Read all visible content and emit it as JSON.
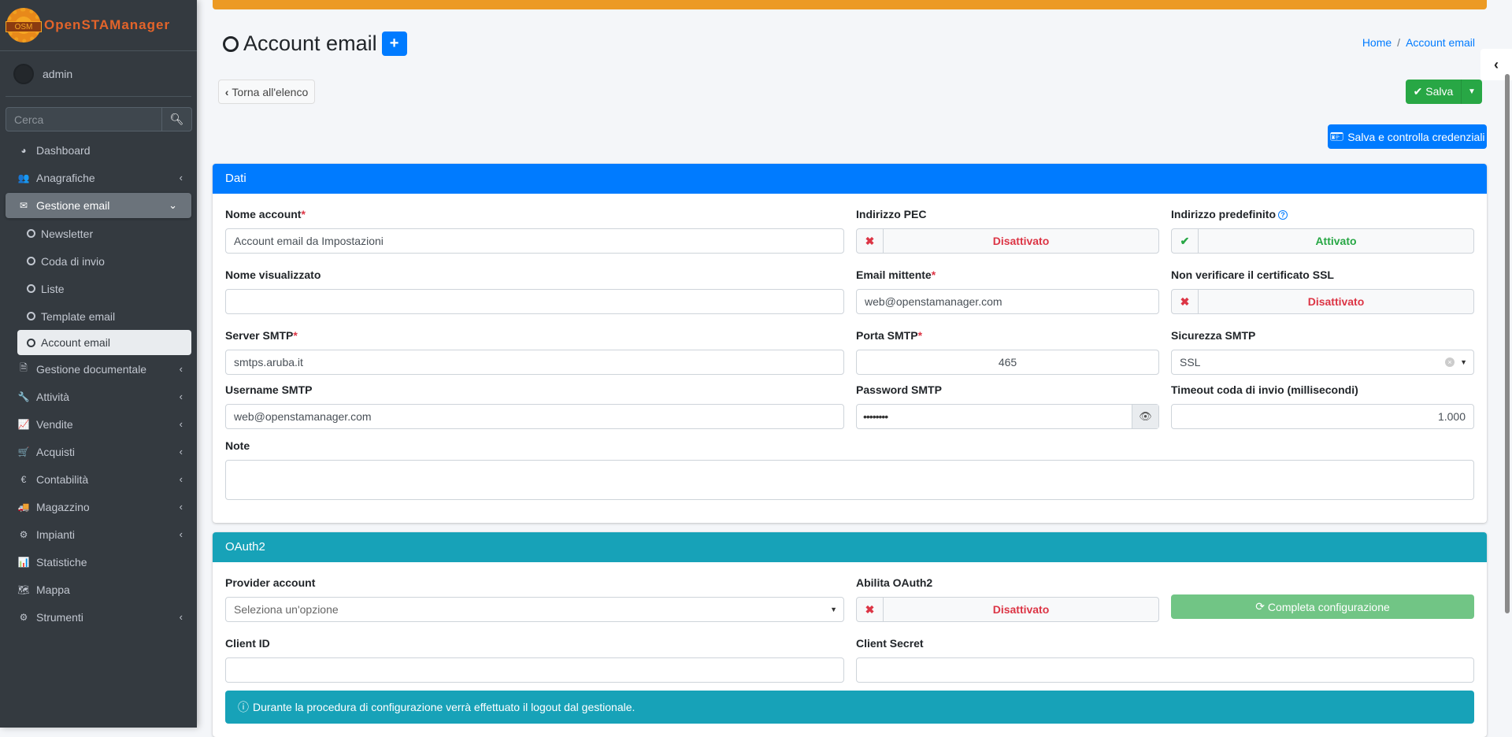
{
  "brand": {
    "logo_text": "OSM",
    "name": "OpenSTAManager"
  },
  "user": {
    "name": "admin"
  },
  "search": {
    "placeholder": "Cerca"
  },
  "sidebar": {
    "items": [
      {
        "label": "Dashboard",
        "icon": "dashboard-icon",
        "glyph": "◕"
      },
      {
        "label": "Anagrafiche",
        "icon": "users-icon",
        "glyph": "👥",
        "arrow": "‹"
      },
      {
        "label": "Gestione email",
        "icon": "envelope-icon",
        "glyph": "✉",
        "arrow": "⌄",
        "active": true
      },
      {
        "label": "Newsletter",
        "sub": true
      },
      {
        "label": "Coda di invio",
        "sub": true
      },
      {
        "label": "Liste",
        "sub": true
      },
      {
        "label": "Template email",
        "sub": true
      },
      {
        "label": "Account email",
        "sub": true,
        "current": true
      },
      {
        "label": "Gestione documentale",
        "icon": "file-icon",
        "glyph": "🗎",
        "arrow": "‹"
      },
      {
        "label": "Attività",
        "icon": "wrench-icon",
        "glyph": "🔧",
        "arrow": "‹"
      },
      {
        "label": "Vendite",
        "icon": "chart-line-icon",
        "glyph": "📈",
        "arrow": "‹"
      },
      {
        "label": "Acquisti",
        "icon": "cart-icon",
        "glyph": "🛒",
        "arrow": "‹"
      },
      {
        "label": "Contabilità",
        "icon": "euro-icon",
        "glyph": "€",
        "arrow": "‹"
      },
      {
        "label": "Magazzino",
        "icon": "truck-icon",
        "glyph": "🚚",
        "arrow": "‹"
      },
      {
        "label": "Impianti",
        "icon": "sitemap-icon",
        "glyph": "⚙",
        "arrow": "‹"
      },
      {
        "label": "Statistiche",
        "icon": "bar-chart-icon",
        "glyph": "📊"
      },
      {
        "label": "Mappa",
        "icon": "map-icon",
        "glyph": "🗺"
      },
      {
        "label": "Strumenti",
        "icon": "cog-icon",
        "glyph": "⚙",
        "arrow": "‹"
      }
    ]
  },
  "header": {
    "title": "Account email",
    "add": "+",
    "breadcrumb": [
      "Home",
      "/",
      "Account email"
    ]
  },
  "toolbar": {
    "back": "Torna all'elenco",
    "save": "Salva",
    "save_check": "Salva e controlla credenziali"
  },
  "dati": {
    "title": "Dati",
    "nome_account": {
      "label": "Nome account",
      "value": "Account email da Impostazioni"
    },
    "pec": {
      "label": "Indirizzo PEC",
      "value": "Disattivato"
    },
    "predefinito": {
      "label": "Indirizzo predefinito",
      "value": "Attivato"
    },
    "nome_visualizzato": {
      "label": "Nome visualizzato",
      "value": ""
    },
    "mittente": {
      "label": "Email mittente",
      "value": "web@openstamanager.com"
    },
    "ssl_check": {
      "label": "Non verificare il certificato SSL",
      "value": "Disattivato"
    },
    "server": {
      "label": "Server SMTP",
      "value": "smtps.aruba.it"
    },
    "porta": {
      "label": "Porta SMTP",
      "value": "465"
    },
    "sicurezza": {
      "label": "Sicurezza SMTP",
      "value": "SSL"
    },
    "username": {
      "label": "Username SMTP",
      "value": "web@openstamanager.com"
    },
    "password": {
      "label": "Password SMTP",
      "value": "••••••••"
    },
    "timeout": {
      "label": "Timeout coda di invio (millisecondi)",
      "value": "1.000"
    },
    "note": {
      "label": "Note",
      "value": ""
    }
  },
  "oauth": {
    "title": "OAuth2",
    "provider": {
      "label": "Provider account",
      "placeholder": "Seleziona un'opzione"
    },
    "abilita": {
      "label": "Abilita OAuth2",
      "value": "Disattivato"
    },
    "completa": "Completa configurazione",
    "client_id": {
      "label": "Client ID",
      "value": ""
    },
    "client_secret": {
      "label": "Client Secret",
      "value": ""
    },
    "info": "Durante la procedura di configurazione verrà effettuato il logout dal gestionale."
  },
  "colors": {
    "sidebar": "#343a40",
    "accent": "#007bff",
    "warning": "#ec9a24",
    "success": "#28a745",
    "danger": "#dc3545",
    "info": "#17a2b8"
  }
}
